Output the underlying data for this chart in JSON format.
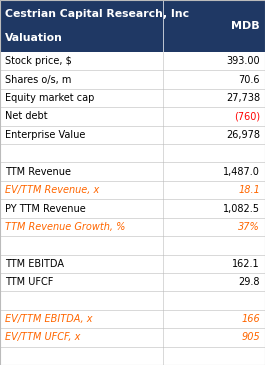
{
  "header_bg": "#1F3864",
  "header_text_color": "#FFFFFF",
  "header_line1": "Cestrian Capital Research, Inc",
  "header_line2": "Valuation",
  "header_col2": "MDB",
  "row_bg_light": "#FFFFFF",
  "grid_color": "#BBBBBB",
  "col_split": 0.615,
  "rows": [
    {
      "label": "Stock price, $",
      "value": "393.00",
      "italic": false,
      "label_color": "#000000",
      "value_color": "#000000",
      "empty": false
    },
    {
      "label": "Shares o/s, m",
      "value": "70.6",
      "italic": false,
      "label_color": "#000000",
      "value_color": "#000000",
      "empty": false
    },
    {
      "label": "Equity market cap",
      "value": "27,738",
      "italic": false,
      "label_color": "#000000",
      "value_color": "#000000",
      "empty": false
    },
    {
      "label": "Net debt",
      "value": "(760)",
      "italic": false,
      "label_color": "#000000",
      "value_color": "#FF0000",
      "empty": false
    },
    {
      "label": "Enterprise Value",
      "value": "26,978",
      "italic": false,
      "label_color": "#000000",
      "value_color": "#000000",
      "empty": false
    },
    {
      "label": "",
      "value": "",
      "italic": false,
      "label_color": "#000000",
      "value_color": "#000000",
      "empty": true
    },
    {
      "label": "TTM Revenue",
      "value": "1,487.0",
      "italic": false,
      "label_color": "#000000",
      "value_color": "#000000",
      "empty": false
    },
    {
      "label": "EV/TTM Revenue, x",
      "value": "18.1",
      "italic": true,
      "label_color": "#FF6600",
      "value_color": "#FF6600",
      "empty": false
    },
    {
      "label": "PY TTM Revenue",
      "value": "1,082.5",
      "italic": false,
      "label_color": "#000000",
      "value_color": "#000000",
      "empty": false
    },
    {
      "label": "TTM Revenue Growth, %",
      "value": "37%",
      "italic": true,
      "label_color": "#FF6600",
      "value_color": "#FF6600",
      "empty": false
    },
    {
      "label": "",
      "value": "",
      "italic": false,
      "label_color": "#000000",
      "value_color": "#000000",
      "empty": true
    },
    {
      "label": "TTM EBITDA",
      "value": "162.1",
      "italic": false,
      "label_color": "#000000",
      "value_color": "#000000",
      "empty": false
    },
    {
      "label": "TTM UFCF",
      "value": "29.8",
      "italic": false,
      "label_color": "#000000",
      "value_color": "#000000",
      "empty": false
    },
    {
      "label": "",
      "value": "",
      "italic": false,
      "label_color": "#000000",
      "value_color": "#000000",
      "empty": true
    },
    {
      "label": "EV/TTM EBITDA, x",
      "value": "166",
      "italic": true,
      "label_color": "#FF6600",
      "value_color": "#FF6600",
      "empty": false
    },
    {
      "label": "EV/TTM UFCF, x",
      "value": "905",
      "italic": true,
      "label_color": "#FF6600",
      "value_color": "#FF6600",
      "empty": false
    },
    {
      "label": "",
      "value": "",
      "italic": false,
      "label_color": "#000000",
      "value_color": "#000000",
      "empty": true
    }
  ],
  "figsize": [
    2.65,
    3.65
  ],
  "dpi": 100
}
